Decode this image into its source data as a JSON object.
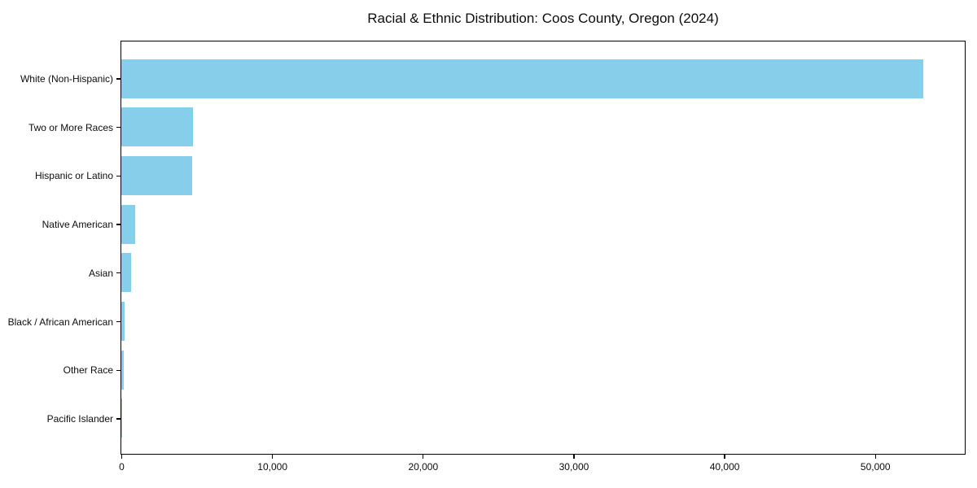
{
  "chart_data": {
    "type": "bar",
    "orientation": "horizontal",
    "title": "Racial & Ethnic Distribution: Coos County, Oregon (2024)",
    "categories": [
      "White (Non-Hispanic)",
      "Two or More Races",
      "Hispanic or Latino",
      "Native American",
      "Asian",
      "Black / African American",
      "Other Race",
      "Pacific Islander"
    ],
    "values": [
      53200,
      4750,
      4700,
      900,
      640,
      230,
      160,
      40
    ],
    "xlabel": "",
    "ylabel": "",
    "xlim": [
      0,
      55900
    ],
    "x_ticks": [
      0,
      10000,
      20000,
      30000,
      40000,
      50000
    ],
    "x_tick_labels": [
      "0",
      "10,000",
      "20,000",
      "30,000",
      "40,000",
      "50,000"
    ],
    "bar_color": "#87CEEB",
    "axis_color": "#000000",
    "grid": false,
    "legend": false
  }
}
